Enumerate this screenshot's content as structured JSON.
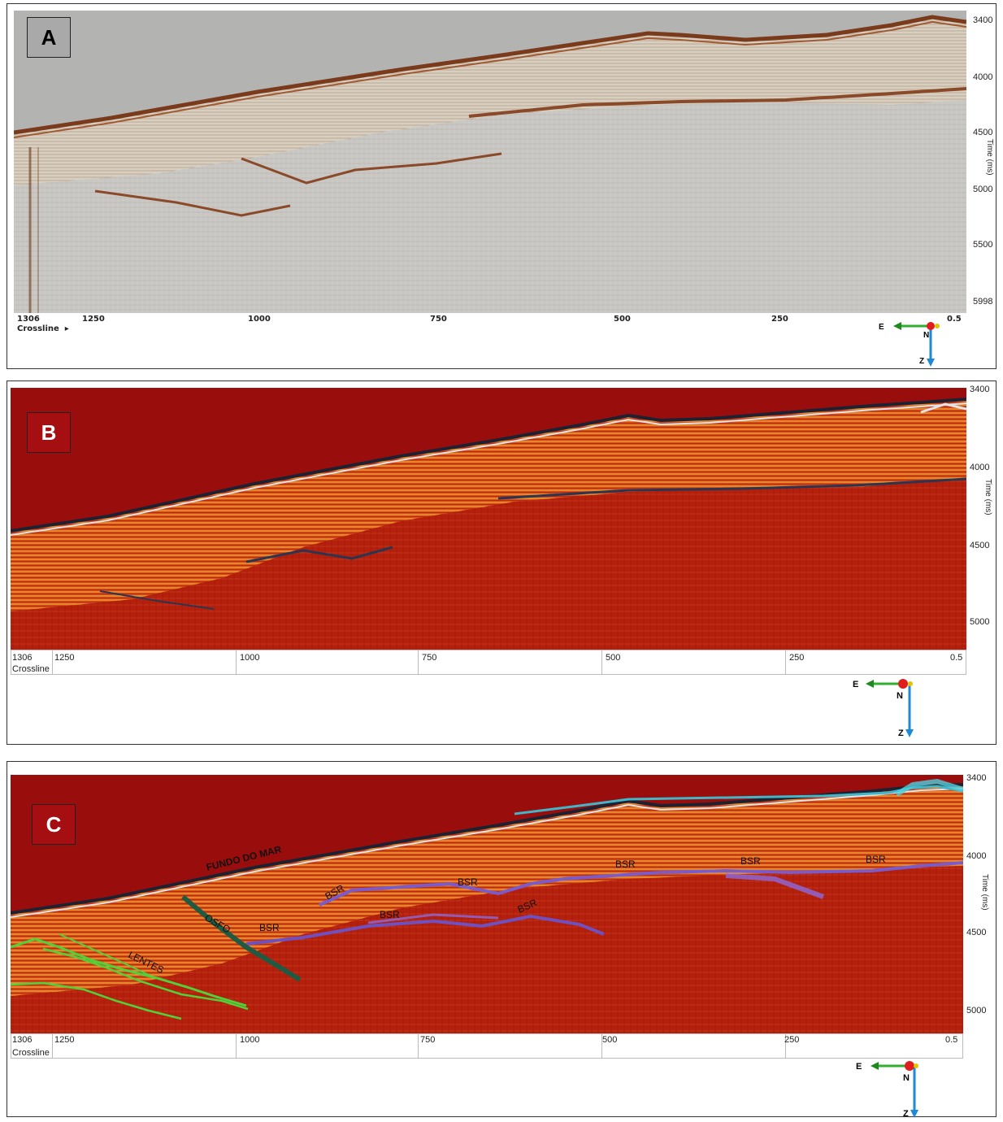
{
  "panels": [
    {
      "id": "A",
      "badge": "A",
      "time_ticks": [
        "3400",
        "4000",
        "4500",
        "5000",
        "5500",
        "5998"
      ],
      "axis_title": "Time (ms)",
      "crossline_ticks": [
        "1306",
        "1250",
        "1000",
        "750",
        "500",
        "250",
        "0.5"
      ],
      "crossline_label": "Crossline",
      "compass": {
        "e": "E",
        "n": "N",
        "z": "Z"
      }
    },
    {
      "id": "B",
      "badge": "B",
      "time_ticks": [
        "3400",
        "4000",
        "4500",
        "5000"
      ],
      "axis_title": "Time (ms)",
      "crossline_ticks": [
        "1306",
        "1250",
        "1000",
        "750",
        "500",
        "250",
        "0.5"
      ],
      "crossline_label": "Crossline",
      "compass": {
        "e": "E",
        "n": "N",
        "z": "Z"
      }
    },
    {
      "id": "C",
      "badge": "C",
      "time_ticks": [
        "3400",
        "4000",
        "4500",
        "5000"
      ],
      "axis_title": "Time (ms)",
      "crossline_ticks": [
        "1306",
        "1250",
        "1000",
        "750",
        "500",
        "250",
        "0.5"
      ],
      "crossline_label": "Crossline",
      "compass": {
        "e": "E",
        "n": "N",
        "z": "Z"
      },
      "annotations": {
        "seafloor": "FUNDO DO MAR",
        "lenses": "LENTES",
        "fault": "OSFO",
        "bsr": "BSR"
      }
    }
  ],
  "colors": {
    "seismic_gray": "#b3b3b1",
    "seismic_brown": "#8a4a2a",
    "seismic_red": "#9a0d0d",
    "seismic_orange": "#e2581c",
    "bsr_purple": "#7a5bc9",
    "lentes_green": "#4fd13a",
    "fault_green": "#1f5a43",
    "badge_red": "#a50f12"
  }
}
